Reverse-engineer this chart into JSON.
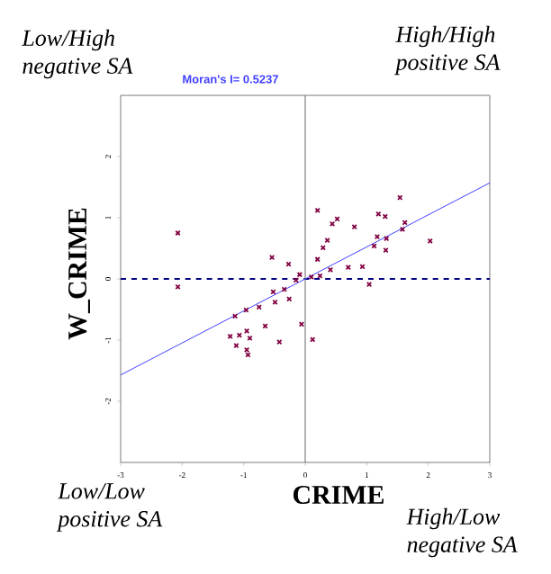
{
  "chart_data": {
    "type": "scatter",
    "xlabel": "CRIME",
    "ylabel": "W_CRIME",
    "xlim": [
      -3,
      3
    ],
    "ylim": [
      -3,
      3
    ],
    "xticks": [
      -3,
      -2,
      -1,
      0,
      1,
      2,
      3
    ],
    "yticks": [
      -2,
      -1,
      0,
      1,
      2
    ],
    "grid": false,
    "annotations": [
      "Low/High\nnegative SA",
      "High/High\npositive SA",
      "Low/Low\npositive SA",
      "High/Low\nnegative SA",
      "Moran's I= 0.5237"
    ],
    "ref_lines": [
      {
        "axis": "y",
        "value": 0,
        "color": "#000080",
        "line_style": "dashed"
      },
      {
        "axis": "x",
        "value": 0,
        "color": "#808080",
        "line_style": "solid"
      }
    ],
    "series": [
      {
        "color": "#800040",
        "marker": "cross",
        "x": [
          -2.07,
          -2.07,
          -0.54,
          -0.27,
          -0.09,
          -0.15,
          0.2,
          0.52,
          0.44,
          0.8,
          0.36,
          0.29,
          0.2,
          0.41,
          0.24,
          0.1,
          0.7,
          0.93,
          1.04,
          1.12,
          1.17,
          1.19,
          1.3,
          1.32,
          1.31,
          1.54,
          1.58,
          1.62,
          2.03,
          -0.34,
          -0.52,
          -0.49,
          -0.26,
          -0.75,
          -0.96,
          -1.14,
          -0.65,
          -0.06,
          0.12,
          -0.42,
          -1.22,
          -1.07,
          -0.95,
          -0.9,
          -1.12,
          -0.95,
          -0.93
        ],
        "values": [
          0.75,
          -0.13,
          0.35,
          0.24,
          0.07,
          -0.02,
          1.12,
          0.98,
          0.9,
          0.85,
          0.63,
          0.51,
          0.32,
          0.15,
          0.05,
          0.03,
          0.19,
          0.2,
          -0.09,
          0.54,
          0.69,
          1.06,
          1.02,
          0.66,
          0.47,
          1.33,
          0.81,
          0.92,
          0.62,
          -0.17,
          -0.21,
          -0.38,
          -0.33,
          -0.46,
          -0.51,
          -0.61,
          -0.77,
          -0.74,
          -0.99,
          -1.03,
          -0.94,
          -0.92,
          -0.85,
          -0.97,
          -1.09,
          -1.16,
          -1.24
        ]
      },
      {
        "type": "line",
        "color": "#4040ff",
        "marker": "none",
        "line_style": "solid",
        "x": [
          -3,
          3
        ],
        "values": [
          -1.57,
          1.57
        ]
      }
    ]
  }
}
